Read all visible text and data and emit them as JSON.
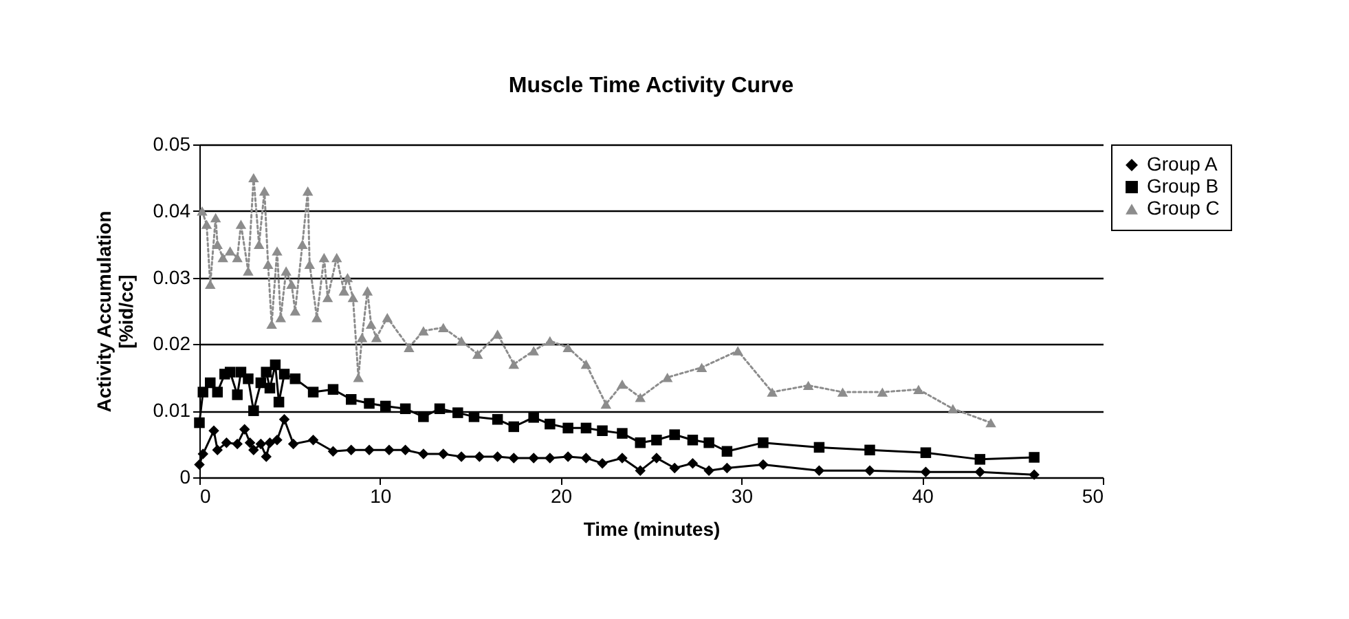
{
  "chart_data": {
    "type": "line",
    "title": "Muscle Time Activity Curve",
    "xlabel": "Time (minutes)",
    "ylabel": "Activity Accumulation\n[%id/cc]",
    "xlim": [
      0,
      50
    ],
    "xticks": [
      0,
      10,
      20,
      30,
      40,
      50
    ],
    "ylim": [
      0,
      0.05
    ],
    "yticks": [
      0,
      0.01,
      0.02,
      0.03,
      0.04,
      0.05
    ],
    "grid": "y",
    "legend": "right",
    "series": [
      {
        "name": "Group A",
        "color": "#000000",
        "marker": "diamond",
        "line_style": "solid",
        "x": [
          0,
          0.2,
          0.8,
          1.0,
          1.5,
          2.1,
          2.5,
          2.8,
          3.0,
          3.4,
          3.7,
          3.9,
          4.3,
          4.7,
          5.2,
          6.3,
          7.4,
          8.4,
          9.4,
          10.5,
          11.4,
          12.4,
          13.5,
          14.5,
          15.5,
          16.5,
          17.4,
          18.5,
          19.4,
          20.4,
          21.4,
          22.3,
          23.4,
          24.4,
          25.3,
          26.3,
          27.3,
          28.2,
          29.2,
          31.2,
          34.3,
          37.1,
          40.2,
          43.2,
          46.2
        ],
        "values": [
          0.0019,
          0.0035,
          0.007,
          0.0041,
          0.0052,
          0.005,
          0.0072,
          0.0052,
          0.0041,
          0.005,
          0.0031,
          0.0052,
          0.0056,
          0.0087,
          0.005,
          0.0056,
          0.0039,
          0.0041,
          0.0041,
          0.0041,
          0.0041,
          0.0035,
          0.0035,
          0.0031,
          0.0031,
          0.0031,
          0.0029,
          0.0029,
          0.0029,
          0.0031,
          0.0029,
          0.0021,
          0.0029,
          0.001,
          0.0029,
          0.0014,
          0.0021,
          0.001,
          0.0014,
          0.0019,
          0.001,
          0.001,
          0.0008,
          0.0008,
          0.0004
        ]
      },
      {
        "name": "Group B",
        "color": "#000000",
        "marker": "square",
        "line_style": "solid",
        "x": [
          0,
          0.2,
          0.6,
          1.0,
          1.4,
          1.7,
          2.1,
          2.3,
          2.7,
          3.0,
          3.4,
          3.7,
          3.9,
          4.2,
          4.4,
          4.7,
          5.3,
          6.3,
          7.4,
          8.4,
          9.4,
          10.3,
          11.4,
          12.4,
          13.3,
          14.3,
          15.2,
          16.5,
          17.4,
          18.5,
          19.4,
          20.4,
          21.4,
          22.3,
          23.4,
          24.4,
          25.3,
          26.3,
          27.3,
          28.2,
          29.2,
          31.2,
          34.3,
          37.1,
          40.2,
          43.2,
          46.2
        ],
        "values": [
          0.0082,
          0.0128,
          0.0142,
          0.0128,
          0.0155,
          0.0158,
          0.0124,
          0.0158,
          0.0148,
          0.01,
          0.0142,
          0.0158,
          0.0134,
          0.0169,
          0.0113,
          0.0155,
          0.0148,
          0.0128,
          0.0132,
          0.0117,
          0.0111,
          0.0107,
          0.0103,
          0.0091,
          0.0103,
          0.0097,
          0.0091,
          0.0087,
          0.0076,
          0.009,
          0.008,
          0.0074,
          0.0074,
          0.007,
          0.0066,
          0.0052,
          0.0056,
          0.0064,
          0.0056,
          0.0052,
          0.0039,
          0.0052,
          0.0045,
          0.0041,
          0.0037,
          0.0027,
          0.003
        ]
      },
      {
        "name": "Group C",
        "color": "#8c8c8c",
        "marker": "triangle",
        "line_style": "dotted",
        "x": [
          0.15,
          0.4,
          0.6,
          0.9,
          1.0,
          1.3,
          1.7,
          2.1,
          2.3,
          2.7,
          3.0,
          3.3,
          3.6,
          3.8,
          4.0,
          4.3,
          4.5,
          4.8,
          5.1,
          5.3,
          5.7,
          6.0,
          6.1,
          6.5,
          6.9,
          7.1,
          7.6,
          8.0,
          8.2,
          8.5,
          8.8,
          9.0,
          9.3,
          9.5,
          9.8,
          10.4,
          11.6,
          12.4,
          13.5,
          14.5,
          15.4,
          16.5,
          17.4,
          18.5,
          19.4,
          20.4,
          21.4,
          22.5,
          23.4,
          24.4,
          25.9,
          27.8,
          29.8,
          31.7,
          33.7,
          35.6,
          37.8,
          39.8,
          41.7,
          43.8
        ],
        "values": [
          0.04,
          0.038,
          0.029,
          0.039,
          0.035,
          0.033,
          0.034,
          0.033,
          0.038,
          0.031,
          0.045,
          0.035,
          0.043,
          0.032,
          0.023,
          0.034,
          0.024,
          0.031,
          0.029,
          0.025,
          0.035,
          0.043,
          0.032,
          0.024,
          0.033,
          0.027,
          0.033,
          0.028,
          0.03,
          0.027,
          0.015,
          0.021,
          0.028,
          0.023,
          0.021,
          0.024,
          0.0195,
          0.022,
          0.0225,
          0.0205,
          0.0185,
          0.0215,
          0.017,
          0.019,
          0.0205,
          0.0195,
          0.017,
          0.011,
          0.014,
          0.012,
          0.015,
          0.0165,
          0.019,
          0.0128,
          0.0138,
          0.0128,
          0.0128,
          0.0132,
          0.0103,
          0.0082
        ]
      }
    ]
  }
}
